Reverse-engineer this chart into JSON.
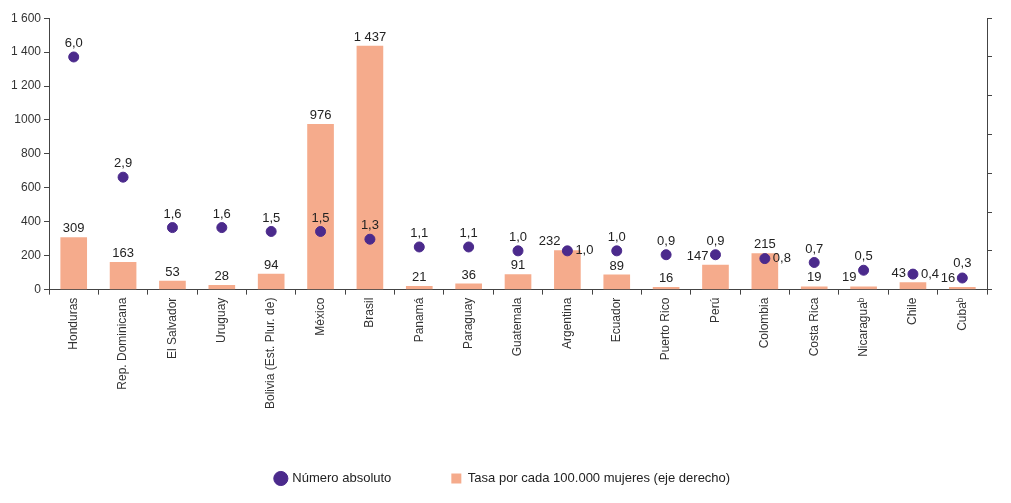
{
  "chart_data": {
    "type": "bar",
    "categories": [
      "Honduras",
      "Rep. Dominicana",
      "El Salvador",
      "Uruguay",
      "Bolivia (Est. Plur. de)",
      "México",
      "Brasil",
      "Panamá",
      "Paraguay",
      "Guatemala",
      "Argentina",
      "Ecuador",
      "Puerto Rico",
      "Perú",
      "Colombia",
      "Costa Rica",
      "Nicaraguaᵇ",
      "Chile",
      "Cubaᵇ"
    ],
    "series": [
      {
        "name": "Número absoluto",
        "type": "scatter",
        "axis": "y2",
        "color": "#4b2a8c",
        "marker": "circle",
        "x": [
          "Honduras",
          "Rep. Dominicana",
          "El Salvador",
          "Uruguay",
          "Bolivia (Est. Plur. de)",
          "México",
          "Brasil",
          "Panamá",
          "Paraguay",
          "Guatemala",
          "Argentina",
          "Ecuador",
          "Puerto Rico",
          "Perú",
          "Colombia",
          "Costa Rica",
          "Nicaraguaᵇ",
          "Chile",
          "Cubaᵇ"
        ],
        "values": [
          6.0,
          2.9,
          1.6,
          1.6,
          1.5,
          1.5,
          1.3,
          1.1,
          1.1,
          1.0,
          1.0,
          1.0,
          0.9,
          0.9,
          0.8,
          0.7,
          0.5,
          0.4,
          0.3
        ],
        "value_labels": [
          "6,0",
          "2,9",
          "1,6",
          "1,6",
          "1,5",
          "1,5",
          "1,3",
          "1,1",
          "1,1",
          "1,0",
          "1,0",
          "1,0",
          "0,9",
          "0,9",
          "0,8",
          "0,7",
          "0,5",
          "0,4",
          "0,3"
        ]
      },
      {
        "name": "Tasa por cada 100.000 mujeres (eje derecho)",
        "color": "#f5ab8c",
        "values": [
          309,
          163,
          53,
          28,
          94,
          976,
          1437,
          21,
          36,
          91,
          232,
          89,
          16,
          147,
          215,
          19,
          19,
          43,
          16
        ],
        "value_labels": [
          "309",
          "163",
          "53",
          "28",
          "94",
          "976",
          "1 437",
          "21",
          "36",
          "91",
          "232",
          "89",
          "16",
          "147",
          "215",
          "19",
          "19",
          "43",
          "16"
        ]
      }
    ],
    "ylim": [
      0,
      1600
    ],
    "yticks": [
      0,
      200,
      400,
      600,
      800,
      1000,
      {
        "value": 1200,
        "label": "1 200"
      },
      {
        "value": 1400,
        "label": "1 400"
      },
      {
        "value": 1600,
        "label": "1 600"
      }
    ],
    "y2lim": [
      0,
      7
    ],
    "y2ticks": [
      {
        "value": 0,
        "label": null
      },
      {
        "value": 1,
        "label": null
      },
      {
        "value": 2,
        "label": null
      },
      {
        "value": 3,
        "label": null
      },
      {
        "value": 4,
        "label": null
      },
      {
        "value": 5,
        "label": null
      },
      {
        "value": 6,
        "label": null
      },
      {
        "value": 7,
        "label": null
      }
    ],
    "grid": false,
    "legend": "bottom"
  }
}
